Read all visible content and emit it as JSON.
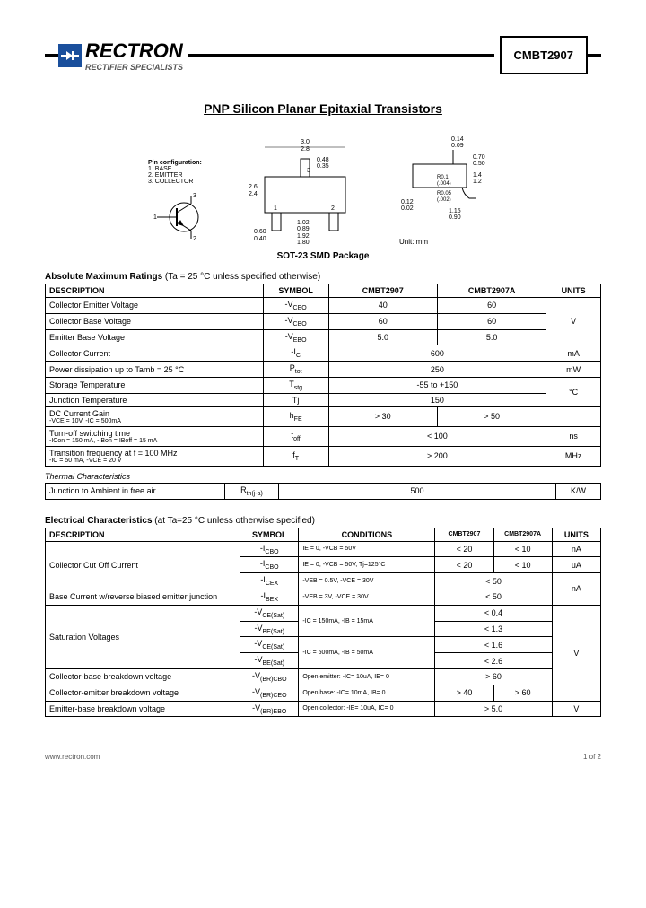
{
  "header": {
    "brand": "RECTRON",
    "tagline": "RECTIFIER SPECIALISTS",
    "part_number": "CMBT2907"
  },
  "title": "PNP  Silicon Planar Epitaxial Transistors",
  "diagrams": {
    "pin_config_title": "Pin configuration:",
    "pins": [
      "1. BASE",
      "2. EMITTER",
      "3. COLLECTOR"
    ],
    "package_label": "SOT-23 SMD Package",
    "unit_label": "Unit: mm",
    "top_dims": {
      "w1": "3.0",
      "w2": "2.8",
      "t1": "0.48",
      "t2": "0.35",
      "h1": "2.6",
      "h2": "2.4",
      "lw": "0.60",
      "lw2": "0.40",
      "p1": "1.02",
      "p2": "0.89",
      "sp1": "1.92",
      "sp2": "1.80"
    },
    "side_dims": {
      "s1": "0.14",
      "s2": "0.09",
      "h1": "0.70",
      "h2": "0.50",
      "h3": "1.4",
      "h4": "1.2",
      "r1": "R0.1",
      "r1n": "(.004)",
      "r2": "R0.05",
      "r2n": "(.002)",
      "f1": "0.12",
      "f2": "0.02",
      "fw1": "1.15",
      "fw2": "0.90"
    }
  },
  "abs_max": {
    "title": "Absolute Maximum Ratings",
    "note": "(Ta = 25 °C unless specified otherwise)",
    "headers": [
      "DESCRIPTION",
      "SYMBOL",
      "CMBT2907",
      "CMBT2907A",
      "UNITS"
    ],
    "rows": [
      {
        "desc": "Collector Emitter Voltage",
        "sym": "-V",
        "sub": "CEO",
        "v1": "40",
        "v2": "60",
        "unit": "V",
        "unit_span": 3
      },
      {
        "desc": "Collector Base Voltage",
        "sym": "-V",
        "sub": "CBO",
        "v1": "60",
        "v2": "60"
      },
      {
        "desc": "Emitter Base Voltage",
        "sym": "-V",
        "sub": "EBO",
        "v1": "5.0",
        "v2": "5.0"
      },
      {
        "desc": "Collector Current",
        "sym": "-I",
        "sub": "C",
        "merged": "600",
        "unit": "mA"
      },
      {
        "desc": "Power dissipation up to Tamb = 25 °C",
        "sym": "P",
        "sub": "tot",
        "merged": "250",
        "unit": "mW"
      },
      {
        "desc": "Storage Temperature",
        "sym": "T",
        "sub": "stg",
        "merged": "-55  to +150",
        "unit": "°C",
        "unit_span": 2
      },
      {
        "desc": "Junction Temperature",
        "sym": "Tj",
        "merged": "150"
      },
      {
        "desc": "DC Current Gain",
        "note": "-VCE = 10V, -IC = 500mA",
        "sym": "h",
        "sub": "FE",
        "v1": "> 30",
        "v2": "> 50",
        "unit": ""
      },
      {
        "desc": "Turn-off switching time",
        "note": "-ICon = 150 mA, -IBon = IBoff = 15 mA",
        "sym": "t",
        "sub": "off",
        "merged": "< 100",
        "unit": "ns"
      },
      {
        "desc": "Transition frequency at  f = 100 MHz",
        "note": "-IC = 50 mA, -VCE = 20 V",
        "sym": "f",
        "sub": "T",
        "merged": "> 200",
        "unit": "MHz"
      }
    ]
  },
  "thermal": {
    "title": "Thermal Characteristics",
    "row": {
      "desc": "Junction to Ambient in free air",
      "sym": "R",
      "sub": "th(j-a)",
      "val": "500",
      "unit": "K/W"
    }
  },
  "elec": {
    "title": "Electrical  Characteristics",
    "note": "(at Ta=25 °C unless otherwise specified)",
    "headers": [
      "DESCRIPTION",
      "SYMBOL",
      "CONDITIONS",
      "CMBT2907",
      "CMBT2907A",
      "UNITS"
    ],
    "rows": [
      {
        "desc": "Collector Cut Off Current",
        "desc_span": 3,
        "sym": "-I",
        "sub": "CBO",
        "cond": "IE = 0, -VCB = 50V",
        "v1": "< 20",
        "v2": "< 10",
        "unit": "nA"
      },
      {
        "sym": "-I",
        "sub": "CBO",
        "cond": "IE = 0, -VCB = 50V, Tj=125°C",
        "v1": "< 20",
        "v2": "< 10",
        "unit": "uA"
      },
      {
        "sym": "-I",
        "sub": "CEX",
        "cond": "-VEB = 0.5V, -VCE = 30V",
        "merged": "< 50",
        "unit": "nA",
        "unit_span": 2
      },
      {
        "desc": "Base Current w/reverse biased emitter junction",
        "sym": "-I",
        "sub": "BEX",
        "cond": "-VEB = 3V, -VCE = 30V",
        "merged": "< 50"
      },
      {
        "desc": "Saturation Voltages",
        "desc_span": 4,
        "sym": "-V",
        "sub": "CE(Sat)",
        "cond": "-IC = 150mA, -IB = 15mA",
        "cond_span": 2,
        "merged": "< 0.4",
        "unit": "V",
        "unit_span": 6
      },
      {
        "sym": "-V",
        "sub": "BE(Sat)",
        "merged": "< 1.3"
      },
      {
        "sym": "-V",
        "sub": "CE(Sat)",
        "cond": "-IC = 500mA, -IB = 50mA",
        "cond_span": 2,
        "merged": "< 1.6"
      },
      {
        "sym": "-V",
        "sub": "BE(Sat)",
        "merged": "< 2.6"
      },
      {
        "desc": "Collector-base breakdown voltage",
        "sym": "-V",
        "sub": "(BR)CBO",
        "cond": "Open emitter: -IC= 10uA, IE= 0",
        "merged": "> 60"
      },
      {
        "desc": "Collector-emitter breakdown voltage",
        "sym": "-V",
        "sub": "(BR)CEO",
        "cond": "Open base: -IC= 10mA, IB= 0",
        "v1": "> 40",
        "v2": "> 60"
      },
      {
        "desc": "Emitter-base breakdown voltage",
        "sym": "-V",
        "sub": "(BR)EBO",
        "cond": "Open collector: -IE= 10uA, IC= 0",
        "merged": "> 5.0",
        "unit": "V"
      }
    ]
  },
  "footer": {
    "url": "www.rectron.com",
    "page": "1 of 2"
  }
}
